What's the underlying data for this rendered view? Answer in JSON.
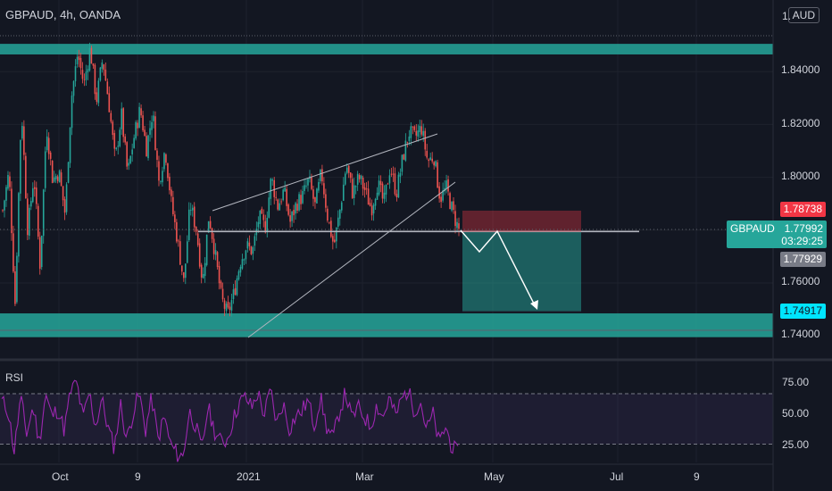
{
  "header": {
    "symbol_line": "GBPAUD, 4h, OANDA",
    "currency": "AUD"
  },
  "indicators": {
    "rsi_label": "RSI"
  },
  "price_axis": {
    "top_tick": "1.",
    "ticks": [
      "1.84000",
      "1.82000",
      "1.80000",
      "1.76000",
      "1.74000"
    ]
  },
  "rsi_axis": {
    "ticks": [
      "75.00",
      "50.00",
      "25.00"
    ]
  },
  "time_axis": {
    "labels": [
      "Oct",
      "9",
      "2021",
      "Mar",
      "May",
      "Jul",
      "9"
    ]
  },
  "price_tags": {
    "stop_loss": "1.78738",
    "current_symbol": "GBPAUD",
    "current_price": "1.77992",
    "countdown": "03:29:25",
    "entry": "1.77929",
    "target": "1.74917"
  },
  "colors": {
    "background": "#131722",
    "up": "#26a69a",
    "down": "#ef5350",
    "zone": "#26a69a",
    "rsi_line": "#9c27b0",
    "stop_tag": "#f23645",
    "target_tag": "#00e5ff",
    "entry_tag": "#787b86"
  },
  "chart_data": {
    "type": "candlestick",
    "x": [
      "Oct",
      "9",
      "2021",
      "Mar",
      "May",
      "Jul",
      "9"
    ],
    "y_range": [
      1.733,
      1.862
    ],
    "rsi_range": [
      14,
      88
    ],
    "rsi_levels": [
      70,
      30
    ],
    "support_zone": [
      1.7395,
      1.7485
    ],
    "resistance_zone": [
      1.8465,
      1.8505
    ],
    "horizontal_level": 1.7795,
    "position": {
      "direction": "short",
      "entry": 1.77929,
      "stop": 1.78738,
      "target": 1.74917
    },
    "path": [
      [
        1.7875,
        1.802,
        1.752,
        1.827,
        1.78,
        1.801,
        1.766,
        1.82,
        1.799,
        1.802,
        1.786,
        1.83,
        1.847,
        1.835,
        1.849,
        1.829,
        1.845,
        1.828,
        1.806,
        1.824,
        1.801,
        1.815,
        1.826,
        1.811,
        1.825,
        1.798,
        1.811,
        1.79,
        1.776,
        1.76,
        1.79,
        1.78,
        1.76,
        1.786,
        1.771,
        1.754,
        1.748,
        1.756,
        1.768,
        1.774,
        1.772,
        1.785,
        1.781,
        1.8,
        1.789,
        1.795,
        1.783,
        1.79,
        1.793,
        1.799,
        1.789,
        1.802,
        1.785,
        1.774,
        1.788,
        1.805,
        1.794,
        1.8,
        1.795,
        1.788,
        1.798,
        1.79,
        1.804,
        1.794,
        1.807,
        1.817,
        1.815,
        1.819,
        1.806,
        1.808,
        1.792,
        1.796,
        1.787,
        1.78
      ]
    ],
    "rsi_values": [
      64,
      57,
      24,
      67,
      38,
      60,
      31,
      70,
      52,
      58,
      41,
      72,
      79,
      50,
      71,
      44,
      66,
      43,
      27,
      62,
      33,
      55,
      70,
      41,
      67,
      34,
      52,
      30,
      22,
      20,
      56,
      45,
      25,
      60,
      41,
      32,
      33,
      49,
      63,
      67,
      59,
      71,
      53,
      73,
      46,
      63,
      42,
      52,
      56,
      65,
      45,
      67,
      43,
      34,
      55,
      71,
      50,
      59,
      52,
      44,
      61,
      51,
      67,
      52,
      66,
      73,
      57,
      64,
      41,
      54,
      30,
      44,
      28,
      22
    ]
  }
}
